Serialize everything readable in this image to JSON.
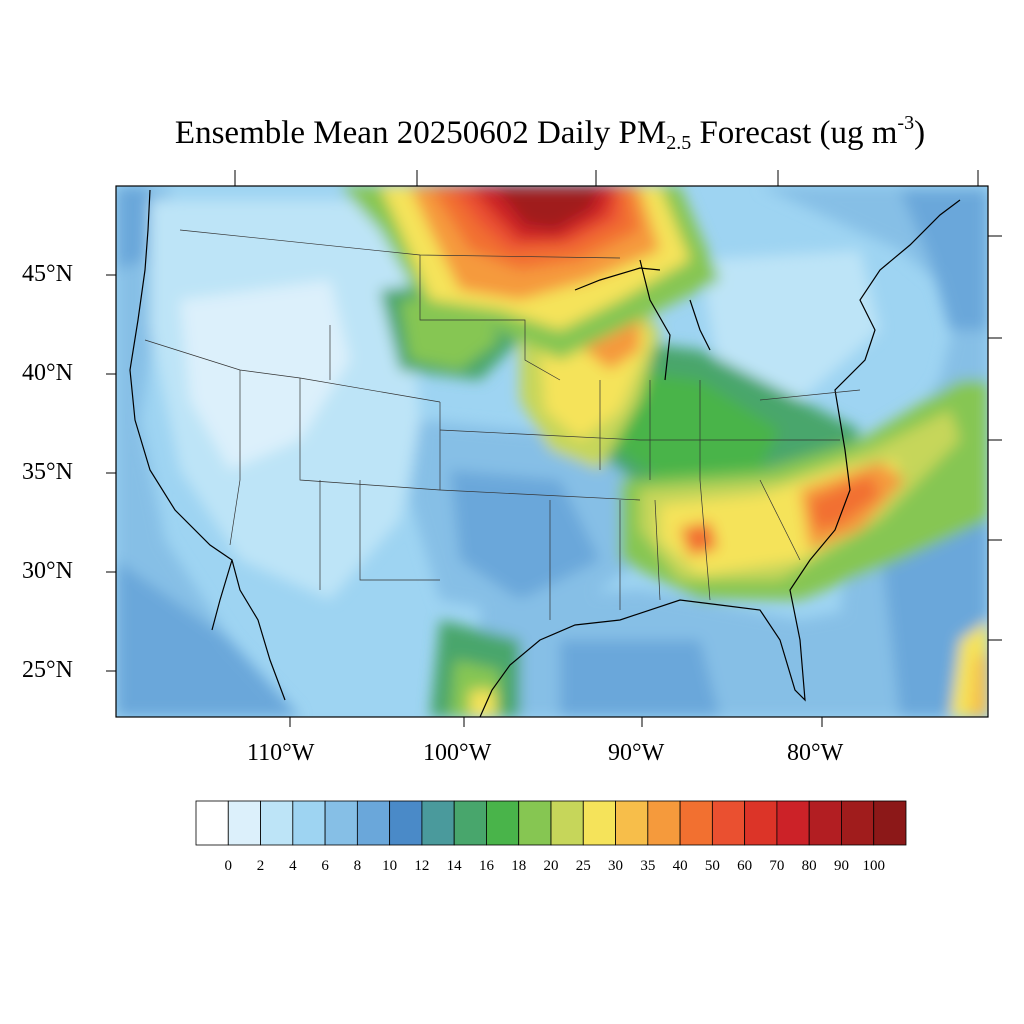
{
  "title": {
    "prefix": "Ensemble Mean 20250602 Daily PM",
    "subscript": "2.5",
    "middle": " Forecast (ug m",
    "superscript": "-3",
    "suffix": ")"
  },
  "axes": {
    "lat_labels": [
      "45°N",
      "40°N",
      "35°N",
      "30°N",
      "25°N"
    ],
    "lon_labels": [
      "110°W",
      "100°W",
      "90°W",
      "80°W"
    ]
  },
  "colorbar": {
    "labels": [
      "0",
      "2",
      "4",
      "6",
      "8",
      "10",
      "12",
      "14",
      "16",
      "18",
      "20",
      "25",
      "30",
      "35",
      "40",
      "50",
      "60",
      "70",
      "80",
      "90",
      "100"
    ],
    "colors": [
      "#ffffff",
      "#dcf0fb",
      "#bde4f7",
      "#9ed4f2",
      "#86bfe6",
      "#6aa7da",
      "#4a8ac8",
      "#4a9a9c",
      "#48a66c",
      "#49b44a",
      "#86c652",
      "#c6d65a",
      "#f5e35a",
      "#f7be4a",
      "#f59a3c",
      "#f27030",
      "#ea5030",
      "#dc3428",
      "#cc2228",
      "#b21e22",
      "#a01c1c",
      "#8c1818"
    ]
  }
}
